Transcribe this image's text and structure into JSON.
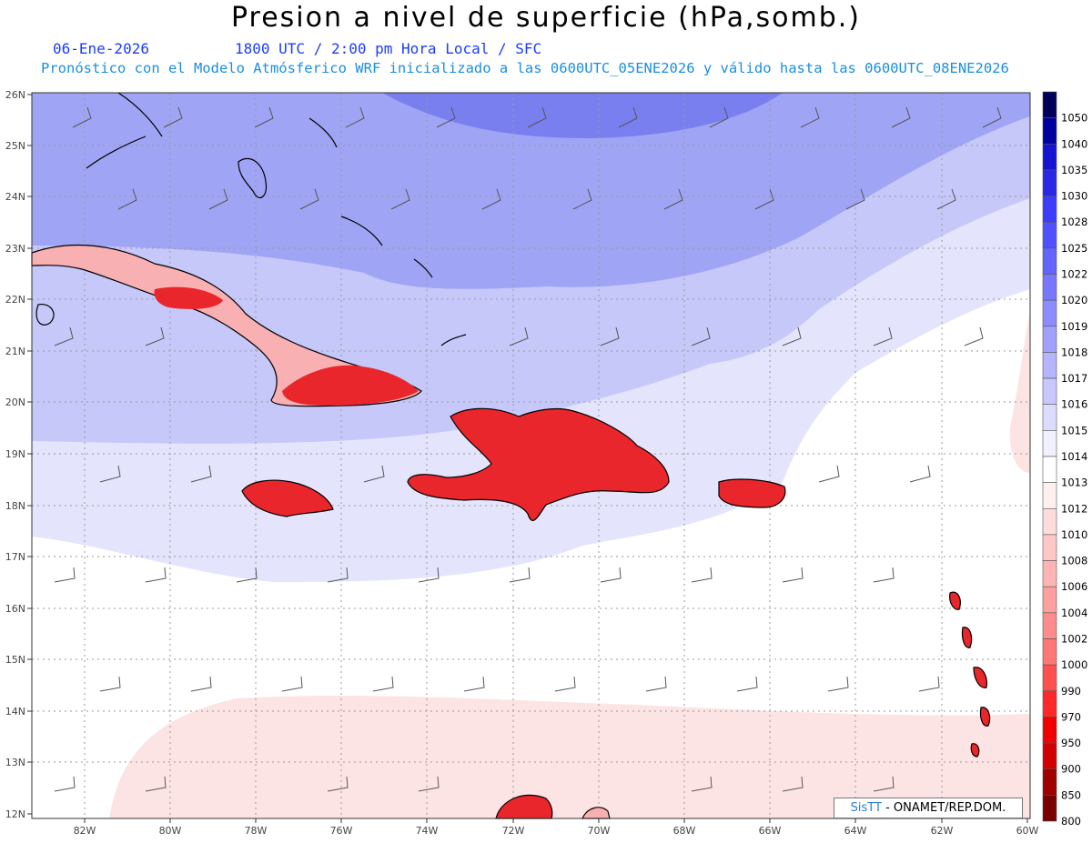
{
  "title": "Presion a nivel de superficie (hPa,somb.)",
  "date": "06-Ene-2026",
  "time_label": "1800 UTC / 2:00 pm Hora Local / SFC",
  "subtitle": "Pronóstico con el Modelo Atmósferico WRF inicializado a las 0600UTC_05ENE2026 y válido hasta las  0600UTC_08ENE2026",
  "credit": {
    "logo": "SisTT",
    "text": "- ONAMET/REP.DOM."
  },
  "lon_labels": [
    "82W",
    "80W",
    "78W",
    "76W",
    "74W",
    "72W",
    "70W",
    "68W",
    "66W",
    "64W",
    "62W",
    "60W"
  ],
  "lat_labels": [
    "26N",
    "25N",
    "24N",
    "23N",
    "22N",
    "21N",
    "20N",
    "19N",
    "18N",
    "17N",
    "16N",
    "15N",
    "14N",
    "13N",
    "12N"
  ],
  "colorbar": {
    "labels": [
      "1050",
      "1040",
      "1035",
      "1030",
      "1028",
      "1025",
      "1022",
      "1020",
      "1019",
      "1018",
      "1017",
      "1016",
      "1015",
      "1014",
      "1013",
      "1012",
      "1010",
      "1008",
      "1006",
      "1004",
      "1002",
      "1000",
      "990",
      "970",
      "950",
      "900",
      "850",
      "800"
    ],
    "colors": [
      "#00005a",
      "#0000a0",
      "#1414d2",
      "#2828e6",
      "#3c3cff",
      "#5050ff",
      "#6464ff",
      "#7878ff",
      "#8c8cff",
      "#a0a0ff",
      "#b4b4ff",
      "#c8c8ff",
      "#dcdcff",
      "#f0f0ff",
      "#ffffff",
      "#fff0f0",
      "#ffdcdc",
      "#ffc8c8",
      "#ffb4b4",
      "#ffa0a0",
      "#ff8c8c",
      "#ff7878",
      "#ff5050",
      "#ff2828",
      "#f00000",
      "#d20000",
      "#a00000",
      "#780000"
    ]
  },
  "map_colors": {
    "blue_deep": "#7a7ff0",
    "blue_mid": "#a0a4f5",
    "blue_light": "#c6c8fa",
    "blue_pale": "#e4e5fc",
    "pink_pale": "#fde4e4",
    "land_red": "#e8262c",
    "land_pink": "#f8b0b2"
  }
}
